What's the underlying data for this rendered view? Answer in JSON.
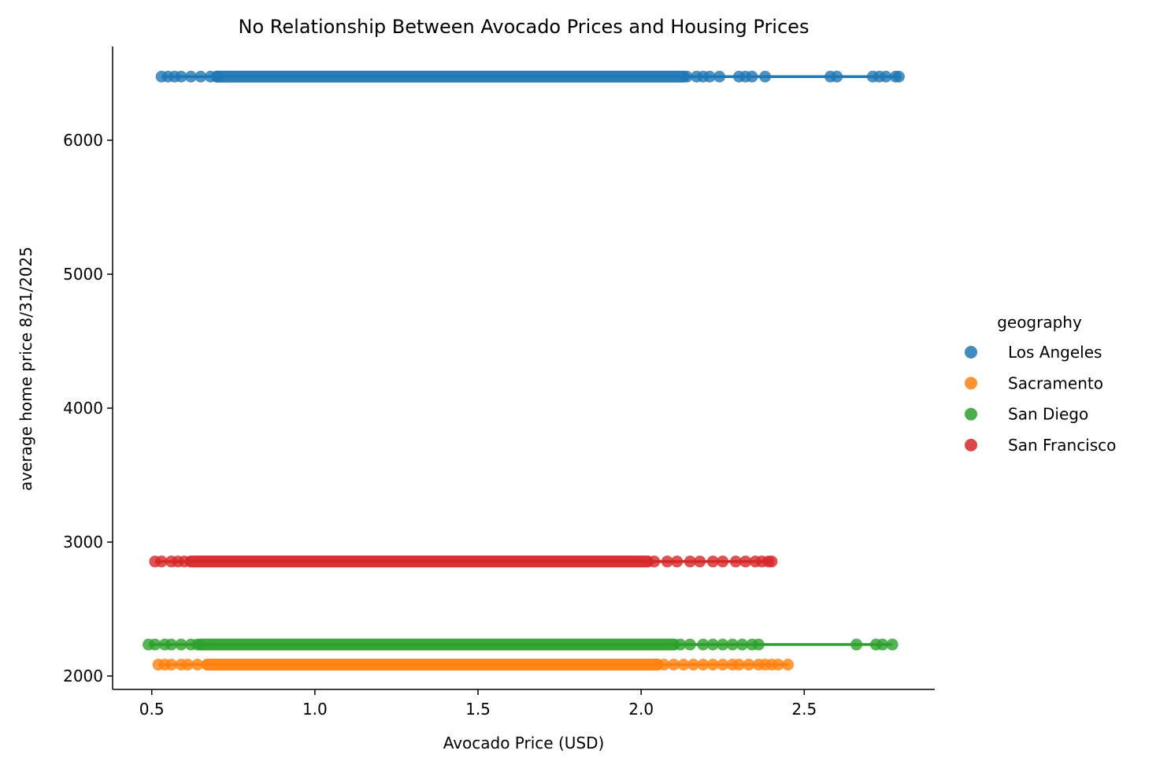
{
  "chart_data": {
    "type": "scatter",
    "title": "No Relationship Between Avocado Prices and Housing Prices",
    "xlabel": "Avocado Price (USD)",
    "ylabel": "average home price 8/31/2025",
    "xlim": [
      0.38,
      2.9
    ],
    "ylim": [
      1900,
      6700
    ],
    "xticks": [
      0.5,
      1.0,
      1.5,
      2.0,
      2.5
    ],
    "xtick_labels": [
      "0.5",
      "1.0",
      "1.5",
      "2.0",
      "2.5"
    ],
    "yticks": [
      2000,
      3000,
      4000,
      5000,
      6000
    ],
    "ytick_labels": [
      "2000",
      "3000",
      "4000",
      "5000",
      "6000"
    ],
    "grid": false,
    "legend": {
      "title": "geography",
      "placement": "right"
    },
    "series": [
      {
        "name": "Los Angeles",
        "color": "#1f77b4",
        "y": 6475,
        "dense_range": [
          0.7,
          2.13
        ],
        "fit_range": [
          0.53,
          2.79
        ],
        "x": [
          0.53,
          0.55,
          0.57,
          0.59,
          0.62,
          0.65,
          0.68,
          0.7,
          2.14,
          2.17,
          2.19,
          2.21,
          2.24,
          2.3,
          2.32,
          2.34,
          2.38,
          2.58,
          2.6,
          2.71,
          2.73,
          2.75,
          2.78,
          2.79
        ]
      },
      {
        "name": "Sacramento",
        "color": "#ff7f0e",
        "y": 2085,
        "dense_range": [
          0.67,
          2.05
        ],
        "fit_range": [
          0.52,
          2.45
        ],
        "x": [
          0.52,
          0.54,
          0.56,
          0.59,
          0.61,
          0.64,
          2.07,
          2.1,
          2.13,
          2.16,
          2.19,
          2.22,
          2.25,
          2.28,
          2.3,
          2.33,
          2.36,
          2.38,
          2.4,
          2.42,
          2.45
        ]
      },
      {
        "name": "San Diego",
        "color": "#2ca02c",
        "y": 2235,
        "dense_range": [
          0.65,
          2.1
        ],
        "fit_range": [
          0.49,
          2.77
        ],
        "x": [
          0.49,
          0.51,
          0.54,
          0.56,
          0.59,
          0.62,
          0.64,
          2.12,
          2.15,
          2.19,
          2.22,
          2.25,
          2.28,
          2.31,
          2.34,
          2.36,
          2.66,
          2.72,
          2.74,
          2.77
        ]
      },
      {
        "name": "San Francisco",
        "color": "#d62728",
        "y": 2855,
        "dense_range": [
          0.62,
          2.02
        ],
        "fit_range": [
          0.51,
          2.4
        ],
        "x": [
          0.51,
          0.53,
          0.56,
          0.58,
          0.6,
          2.04,
          2.08,
          2.11,
          2.15,
          2.18,
          2.22,
          2.25,
          2.29,
          2.32,
          2.35,
          2.37,
          2.39,
          2.4
        ]
      }
    ]
  }
}
